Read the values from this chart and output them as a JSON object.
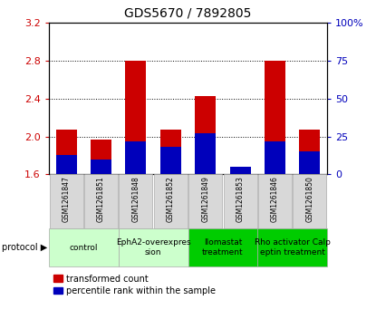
{
  "title": "GDS5670 / 7892805",
  "samples": [
    "GSM1261847",
    "GSM1261851",
    "GSM1261848",
    "GSM1261852",
    "GSM1261849",
    "GSM1261853",
    "GSM1261846",
    "GSM1261850"
  ],
  "transformed_counts": [
    2.07,
    1.97,
    2.8,
    2.07,
    2.43,
    1.64,
    2.8,
    2.07
  ],
  "percentile_ranks": [
    13,
    10,
    22,
    18,
    27,
    5,
    22,
    15
  ],
  "ylim_left": [
    1.6,
    3.2
  ],
  "ylim_right": [
    0,
    100
  ],
  "yticks_left": [
    1.6,
    2.0,
    2.4,
    2.8,
    3.2
  ],
  "yticks_right": [
    0,
    25,
    50,
    75,
    100
  ],
  "bar_width": 0.6,
  "red_color": "#cc0000",
  "blue_color": "#0000bb",
  "protocols": [
    {
      "label": "control",
      "spans": [
        0,
        2
      ],
      "color": "#ccffcc"
    },
    {
      "label": "EphA2-overexpres\nsion",
      "spans": [
        2,
        4
      ],
      "color": "#ccffcc"
    },
    {
      "label": "Ilomastat\ntreatment",
      "spans": [
        4,
        6
      ],
      "color": "#00cc00"
    },
    {
      "label": "Rho activator Calp\neptin treatment",
      "spans": [
        6,
        8
      ],
      "color": "#00cc00"
    }
  ],
  "base_value": 1.6
}
